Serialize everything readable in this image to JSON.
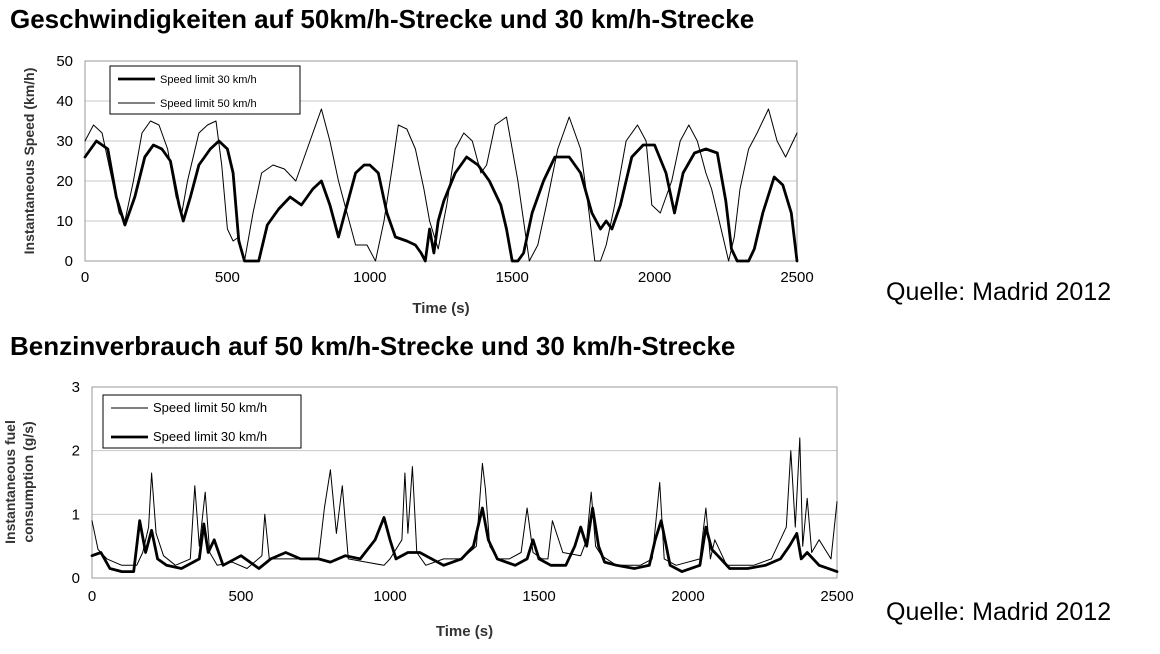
{
  "sections": [
    {
      "heading": "Geschwindigkeiten auf 50km/h-Strecke und 30 km/h-Strecke",
      "source": "Quelle: Madrid 2012"
    },
    {
      "heading": "Benzinverbrauch auf 50 km/h-Strecke und 30 km/h-Strecke",
      "source": "Quelle: Madrid 2012"
    }
  ],
  "chart_data": [
    {
      "type": "line",
      "xlabel": "Time (s)",
      "ylabel": "Instantaneous Speed (km/h)",
      "xlim": [
        0,
        2500
      ],
      "ylim": [
        0,
        50
      ],
      "xticks": [
        0,
        500,
        1000,
        1500,
        2000,
        2500
      ],
      "yticks": [
        0,
        10,
        20,
        30,
        40,
        50
      ],
      "grid": "horizontal",
      "legend_position": "top-left",
      "series": [
        {
          "name": "Speed limit 30 km/h",
          "color": "#000000",
          "style": "thick",
          "x": [
            0,
            40,
            80,
            110,
            140,
            175,
            210,
            240,
            270,
            300,
            330,
            345,
            370,
            400,
            440,
            470,
            500,
            520,
            540,
            560,
            580,
            610,
            640,
            680,
            720,
            760,
            800,
            830,
            860,
            890,
            920,
            950,
            980,
            1000,
            1030,
            1060,
            1090,
            1130,
            1160,
            1180,
            1195,
            1210,
            1225,
            1240,
            1260,
            1300,
            1340,
            1380,
            1420,
            1460,
            1480,
            1500,
            1520,
            1540,
            1570,
            1610,
            1650,
            1700,
            1740,
            1780,
            1810,
            1830,
            1850,
            1880,
            1920,
            1960,
            2000,
            2040,
            2070,
            2100,
            2140,
            2180,
            2220,
            2250,
            2270,
            2290,
            2310,
            2330,
            2350,
            2380,
            2420,
            2450,
            2480,
            2500
          ],
          "y": [
            26,
            30,
            28,
            16,
            9,
            16,
            26,
            29,
            28,
            25,
            14,
            10,
            16,
            24,
            28,
            30,
            28,
            22,
            5,
            0,
            0,
            0,
            9,
            13,
            16,
            14,
            18,
            20,
            14,
            6,
            14,
            22,
            24,
            24,
            22,
            12,
            6,
            5,
            4,
            2,
            0,
            8,
            2,
            10,
            15,
            22,
            26,
            24,
            20,
            14,
            8,
            0,
            0,
            2,
            12,
            20,
            26,
            26,
            22,
            12,
            8,
            10,
            8,
            14,
            26,
            29,
            29,
            22,
            12,
            22,
            27,
            28,
            27,
            15,
            3,
            0,
            0,
            0,
            3,
            12,
            21,
            19,
            12,
            0
          ]
        },
        {
          "name": "Speed limit 50 km/h",
          "color": "#000000",
          "style": "thin",
          "x": [
            0,
            30,
            60,
            90,
            120,
            140,
            170,
            200,
            230,
            260,
            290,
            320,
            340,
            360,
            400,
            430,
            460,
            480,
            500,
            520,
            540,
            560,
            590,
            620,
            660,
            700,
            740,
            790,
            830,
            860,
            890,
            920,
            950,
            990,
            1020,
            1050,
            1080,
            1100,
            1130,
            1160,
            1190,
            1210,
            1240,
            1270,
            1300,
            1330,
            1360,
            1390,
            1410,
            1440,
            1480,
            1520,
            1560,
            1590,
            1620,
            1660,
            1700,
            1740,
            1770,
            1790,
            1810,
            1830,
            1860,
            1900,
            1940,
            1970,
            1990,
            2020,
            2060,
            2090,
            2120,
            2150,
            2180,
            2200,
            2220,
            2240,
            2260,
            2280,
            2300,
            2330,
            2360,
            2400,
            2430,
            2460,
            2500
          ],
          "y": [
            30,
            34,
            32,
            22,
            12,
            10,
            20,
            32,
            35,
            34,
            28,
            16,
            12,
            20,
            32,
            34,
            35,
            24,
            8,
            5,
            6,
            0,
            12,
            22,
            24,
            23,
            20,
            30,
            38,
            30,
            20,
            12,
            4,
            4,
            0,
            10,
            24,
            34,
            33,
            28,
            18,
            10,
            3,
            14,
            28,
            32,
            30,
            22,
            24,
            34,
            36,
            20,
            0,
            4,
            14,
            28,
            36,
            28,
            12,
            0,
            0,
            4,
            14,
            30,
            34,
            30,
            14,
            12,
            20,
            30,
            34,
            30,
            22,
            18,
            12,
            6,
            0,
            6,
            18,
            28,
            32,
            38,
            30,
            26,
            32
          ]
        }
      ]
    },
    {
      "type": "line",
      "xlabel": "Time (s)",
      "ylabel": "Instantaneous fuel consumption (g/s)",
      "ylabel_lines": [
        "Instantaneous fuel",
        "consumption (g/s)"
      ],
      "xlim": [
        0,
        2500
      ],
      "ylim": [
        0,
        3
      ],
      "xticks": [
        0,
        500,
        1000,
        1500,
        2000,
        2500
      ],
      "yticks": [
        0,
        1,
        2,
        3
      ],
      "grid": "horizontal",
      "legend_position": "top-left",
      "series": [
        {
          "name": "Speed limit 50 km/h",
          "color": "#000000",
          "style": "thin",
          "x": [
            0,
            20,
            50,
            100,
            150,
            170,
            190,
            200,
            215,
            240,
            280,
            330,
            345,
            360,
            380,
            395,
            420,
            470,
            520,
            570,
            580,
            595,
            640,
            700,
            760,
            780,
            800,
            820,
            840,
            860,
            920,
            980,
            1000,
            1040,
            1050,
            1060,
            1075,
            1090,
            1120,
            1180,
            1240,
            1290,
            1310,
            1320,
            1335,
            1360,
            1400,
            1440,
            1460,
            1480,
            1510,
            1530,
            1545,
            1580,
            1640,
            1660,
            1675,
            1690,
            1710,
            1760,
            1840,
            1880,
            1905,
            1920,
            1960,
            2040,
            2060,
            2075,
            2090,
            2130,
            2220,
            2280,
            2330,
            2345,
            2360,
            2375,
            2385,
            2400,
            2415,
            2440,
            2480,
            2500
          ],
          "y": [
            0.9,
            0.45,
            0.3,
            0.2,
            0.2,
            0.4,
            0.8,
            1.65,
            0.7,
            0.35,
            0.2,
            0.3,
            1.45,
            0.5,
            1.35,
            0.4,
            0.2,
            0.25,
            0.15,
            0.35,
            1.0,
            0.3,
            0.3,
            0.3,
            0.3,
            1.1,
            1.7,
            0.7,
            1.45,
            0.3,
            0.25,
            0.2,
            0.3,
            0.6,
            1.65,
            0.7,
            1.75,
            0.4,
            0.2,
            0.3,
            0.3,
            0.5,
            1.8,
            1.4,
            0.5,
            0.3,
            0.3,
            0.4,
            1.1,
            0.4,
            0.3,
            0.3,
            0.9,
            0.4,
            0.35,
            0.6,
            1.35,
            0.5,
            0.35,
            0.2,
            0.2,
            0.3,
            1.5,
            0.3,
            0.2,
            0.3,
            1.1,
            0.3,
            0.6,
            0.2,
            0.2,
            0.3,
            0.8,
            2.0,
            0.8,
            2.2,
            0.5,
            1.25,
            0.4,
            0.6,
            0.3,
            1.2
          ]
        },
        {
          "name": "Speed limit 30 km/h",
          "color": "#000000",
          "style": "thick",
          "x": [
            0,
            30,
            60,
            100,
            140,
            160,
            180,
            200,
            220,
            250,
            300,
            360,
            375,
            390,
            410,
            440,
            500,
            560,
            600,
            650,
            700,
            760,
            800,
            850,
            900,
            950,
            980,
            1000,
            1020,
            1060,
            1100,
            1180,
            1240,
            1280,
            1310,
            1330,
            1360,
            1420,
            1460,
            1480,
            1500,
            1540,
            1590,
            1620,
            1640,
            1660,
            1680,
            1700,
            1720,
            1760,
            1820,
            1870,
            1890,
            1910,
            1940,
            1980,
            2040,
            2060,
            2080,
            2100,
            2140,
            2200,
            2260,
            2310,
            2340,
            2365,
            2380,
            2400,
            2440,
            2500
          ],
          "y": [
            0.35,
            0.4,
            0.15,
            0.1,
            0.1,
            0.9,
            0.4,
            0.75,
            0.3,
            0.2,
            0.15,
            0.3,
            0.85,
            0.4,
            0.6,
            0.2,
            0.35,
            0.15,
            0.3,
            0.4,
            0.3,
            0.3,
            0.25,
            0.35,
            0.3,
            0.6,
            0.95,
            0.6,
            0.3,
            0.4,
            0.4,
            0.2,
            0.3,
            0.5,
            1.1,
            0.6,
            0.3,
            0.2,
            0.3,
            0.6,
            0.3,
            0.2,
            0.2,
            0.5,
            0.8,
            0.5,
            1.1,
            0.5,
            0.25,
            0.2,
            0.15,
            0.2,
            0.6,
            0.9,
            0.2,
            0.1,
            0.2,
            0.8,
            0.45,
            0.35,
            0.15,
            0.15,
            0.2,
            0.3,
            0.5,
            0.7,
            0.3,
            0.4,
            0.2,
            0.1
          ]
        }
      ]
    }
  ]
}
